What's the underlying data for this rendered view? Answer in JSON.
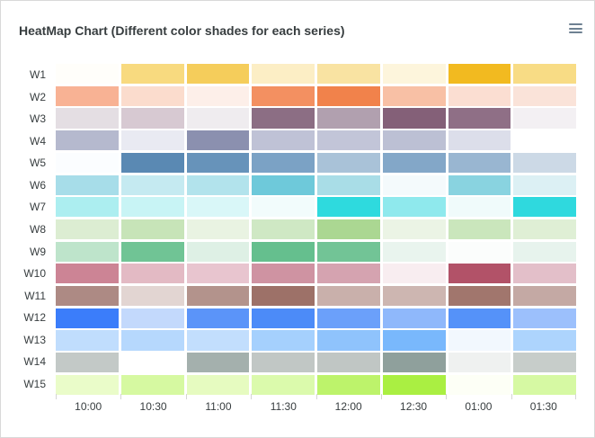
{
  "header": {
    "title": "HeatMap Chart (Different color shades for each series)"
  },
  "menu": {
    "icon": "hamburger-menu-icon",
    "color": "#6e8192"
  },
  "chart_data": {
    "type": "heatmap",
    "title": "HeatMap Chart (Different color shades for each series)",
    "x_categories": [
      "10:00",
      "10:30",
      "11:00",
      "11:30",
      "12:00",
      "12:30",
      "01:00",
      "01:30"
    ],
    "y_categories": [
      "W1",
      "W2",
      "W3",
      "W4",
      "W5",
      "W6",
      "W7",
      "W8",
      "W9",
      "W10",
      "W11",
      "W12",
      "W13",
      "W14",
      "W15"
    ],
    "legend": "none",
    "grid_on": false,
    "axis_label_color": "#373d3f",
    "tick_color": "#d5d5d5",
    "background": "#ffffff",
    "series": [
      {
        "name": "W1",
        "base_color": "#F3B415",
        "cell_colors": [
          "#fffefa",
          "#f8da7f",
          "#f5cd5b",
          "#fceec5",
          "#f9e3a2",
          "#fdf5dc",
          "#f2ba20",
          "#f8dc85"
        ]
      },
      {
        "name": "W2",
        "base_color": "#F27036",
        "cell_colors": [
          "#f8b294",
          "#fbdccd",
          "#fdefe9",
          "#f39061",
          "#f1824b",
          "#f8c0a5",
          "#fbded2",
          "#fae3d9"
        ]
      },
      {
        "name": "W3",
        "base_color": "#663F59",
        "cell_colors": [
          "#e4dee3",
          "#d7c9d2",
          "#efecef",
          "#8c6e84",
          "#b1a0af",
          "#846078",
          "#8f6f86",
          "#f3f0f3"
        ]
      },
      {
        "name": "W4",
        "base_color": "#6A6E94",
        "cell_colors": [
          "#b5b9ce",
          "#e9eaf2",
          "#8b90af",
          "#bfc2d6",
          "#c2c5d8",
          "#bcc0d4",
          "#dcdeea",
          "#ffffff"
        ]
      },
      {
        "name": "W5",
        "base_color": "#4E88B4",
        "cell_colors": [
          "#fbfdff",
          "#5a89b3",
          "#6793ba",
          "#7ba2c5",
          "#a9c2d8",
          "#83a7c8",
          "#99b6d1",
          "#ccd9e6"
        ]
      },
      {
        "name": "W6",
        "base_color": "#00A7C6",
        "cell_colors": [
          "#a7dde9",
          "#c5eaf1",
          "#b2e3ec",
          "#6ec9da",
          "#a9dde7",
          "#f4fafc",
          "#89d3e0",
          "#dcf0f4"
        ]
      },
      {
        "name": "W7",
        "base_color": "#18D8D8",
        "cell_colors": [
          "#aceef0",
          "#c8f4f5",
          "#d9f7f8",
          "#f2fcfc",
          "#2edade",
          "#8fe9ed",
          "#f0fbfb",
          "#2fd9de"
        ]
      },
      {
        "name": "W8",
        "base_color": "#A9D794",
        "cell_colors": [
          "#dcedd2",
          "#c7e4b8",
          "#e9f3e2",
          "#cfe8c4",
          "#abd792",
          "#ebf4e5",
          "#cae6bc",
          "#dfefd5"
        ]
      },
      {
        "name": "W9",
        "base_color": "#46AF78",
        "cell_colors": [
          "#bee4cb",
          "#70c495",
          "#def0e5",
          "#65bf8e",
          "#72c496",
          "#e9f4ee",
          "#fbfdfc",
          "#e7f3ed"
        ]
      },
      {
        "name": "W10",
        "base_color": "#A93F55",
        "cell_colors": [
          "#cc8495",
          "#e3bac4",
          "#e8c5cf",
          "#cf93a2",
          "#d5a3b0",
          "#f8edf0",
          "#b25268",
          "#e3bfc9"
        ]
      },
      {
        "name": "W11",
        "base_color": "#8C5E58",
        "cell_colors": [
          "#ad8a84",
          "#e2d5d2",
          "#b3938c",
          "#9d7168",
          "#c9b0ab",
          "#cdb6b1",
          "#a1766d",
          "#c4a9a4"
        ]
      },
      {
        "name": "W12",
        "base_color": "#2176FF",
        "cell_colors": [
          "#3b7dfa",
          "#c3d9fc",
          "#5b94f9",
          "#4c8bf8",
          "#6ba0fa",
          "#8fb8fb",
          "#5592f9",
          "#9cc0fc"
        ]
      },
      {
        "name": "W13",
        "base_color": "#33A1FD",
        "cell_colors": [
          "#c0ddfd",
          "#b6d8fd",
          "#c2defd",
          "#a5d0fd",
          "#8fc3fc",
          "#79b8fc",
          "#f2f8fe",
          "#add4fd"
        ]
      },
      {
        "name": "W14",
        "base_color": "#7A918D",
        "cell_colors": [
          "#c3c9c7",
          "#ffffff",
          "#a4b0ad",
          "#c1c7c5",
          "#c0c6c4",
          "#8fa09c",
          "#eff1f0",
          "#c7cdca"
        ]
      },
      {
        "name": "W15",
        "base_color": "#BAFF29",
        "cell_colors": [
          "#eafcc9",
          "#d6f9a1",
          "#e6fbc0",
          "#dbfaac",
          "#bdf36b",
          "#aaef42",
          "#fdfff6",
          "#d6f9a3"
        ]
      }
    ]
  }
}
